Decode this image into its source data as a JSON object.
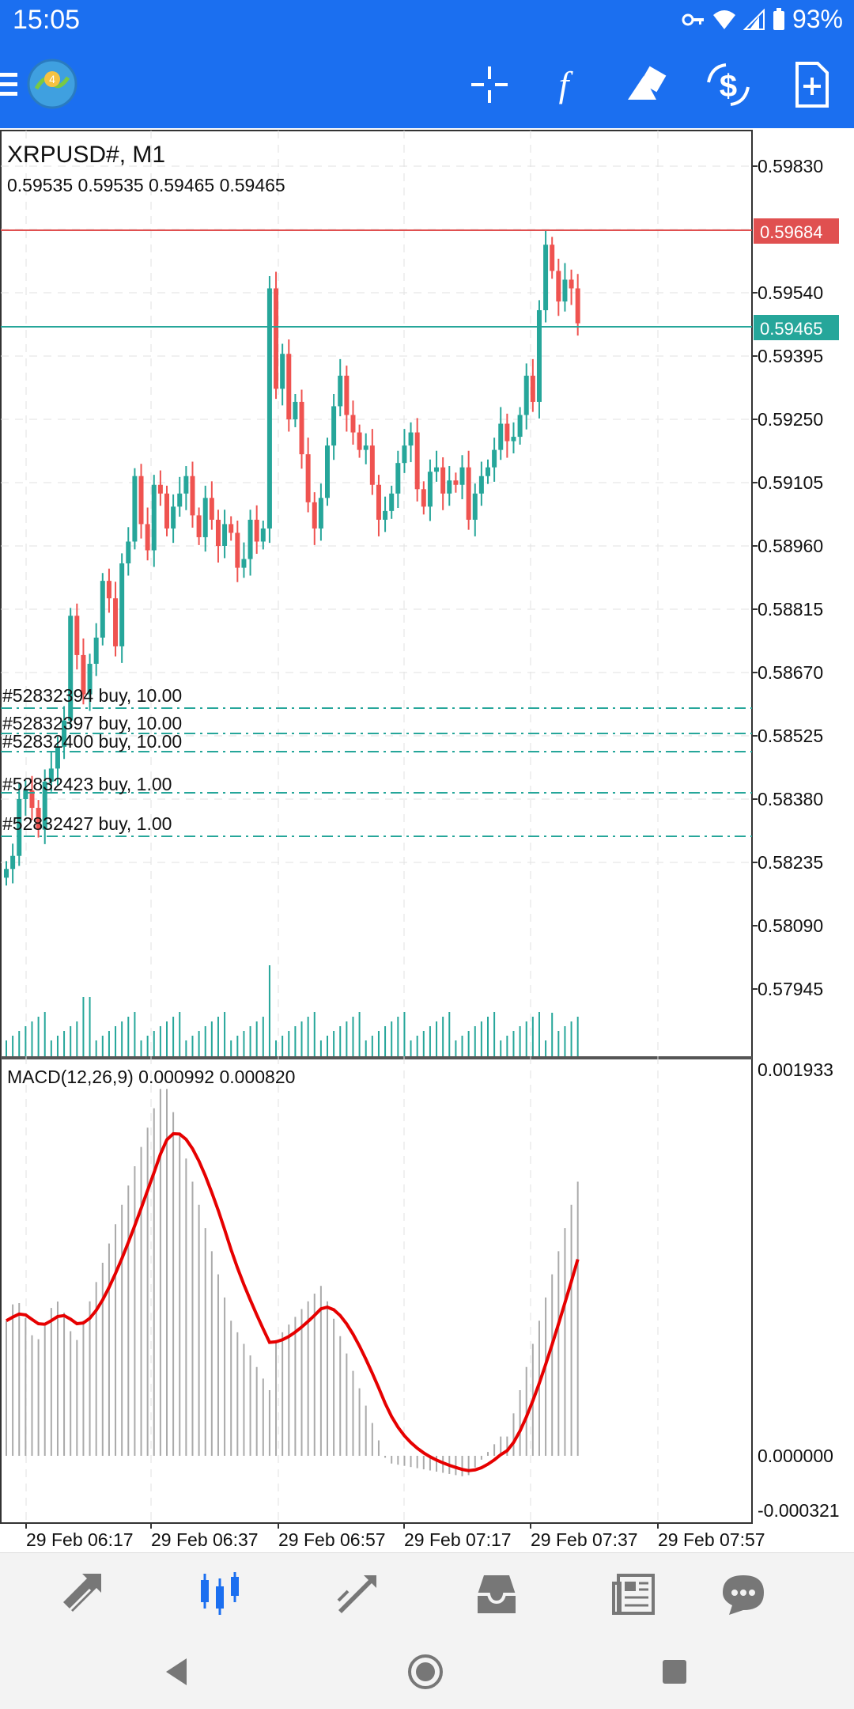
{
  "status_bar": {
    "time": "15:05",
    "battery": "93%"
  },
  "chart": {
    "symbol_timeframe": "XRPUSD#, M1",
    "ohlc": "0.59535 0.59535 0.59465 0.59465",
    "price_ticks": [
      "0.59830",
      "0.59540",
      "0.59395",
      "0.59250",
      "0.59105",
      "0.58960",
      "0.58815",
      "0.58670",
      "0.58525",
      "0.58380",
      "0.58235",
      "0.58090",
      "0.57945"
    ],
    "ask_price": "0.59684",
    "bid_price": "0.59465",
    "orders": [
      "#52832394 buy, 10.00",
      "#52832397 buy, 10.00",
      "#52832400 buy, 10.00",
      "#52832423 buy, 1.00",
      "#52832427 buy, 1.00"
    ],
    "macd_label": "MACD(12,26,9) 0.000992 0.000820",
    "macd_ticks": [
      "0.001933",
      "0.000000",
      "-0.000321"
    ],
    "time_labels": [
      "29 Feb 06:17",
      "29 Feb 06:37",
      "29 Feb 06:57",
      "29 Feb 07:17",
      "29 Feb 07:37",
      "29 Feb 07:57"
    ]
  },
  "colors": {
    "bull": "#26a69a",
    "bear": "#ef5350",
    "accent": "#1b6ff0",
    "signal": "#e60000"
  },
  "chart_data": {
    "type": "candlestick",
    "symbol": "XRPUSD#",
    "timeframe": "M1",
    "y_range": [
      0.5786,
      0.599
    ],
    "close_approx": [
      0.5822,
      0.5825,
      0.5838,
      0.584,
      0.5836,
      0.5831,
      0.5842,
      0.5845,
      0.585,
      0.5856,
      0.588,
      0.5871,
      0.5862,
      0.5869,
      0.5875,
      0.5888,
      0.5884,
      0.5873,
      0.5892,
      0.5897,
      0.5912,
      0.5901,
      0.5895,
      0.591,
      0.5908,
      0.59,
      0.5905,
      0.5908,
      0.5912,
      0.5903,
      0.5898,
      0.5907,
      0.5902,
      0.5896,
      0.5901,
      0.5899,
      0.5891,
      0.5893,
      0.5902,
      0.5897,
      0.59,
      0.5955,
      0.5932,
      0.594,
      0.5925,
      0.5929,
      0.5917,
      0.5906,
      0.59,
      0.5907,
      0.5919,
      0.5928,
      0.5935,
      0.5926,
      0.5922,
      0.5918,
      0.5919,
      0.591,
      0.5902,
      0.5904,
      0.5908,
      0.5915,
      0.5919,
      0.5922,
      0.5909,
      0.5905,
      0.5913,
      0.5914,
      0.5908,
      0.5911,
      0.591,
      0.5914,
      0.5902,
      0.5908,
      0.5912,
      0.5914,
      0.5918,
      0.5924,
      0.592,
      0.5921,
      0.5926,
      0.5935,
      0.5929,
      0.595,
      0.5965,
      0.5959,
      0.5952,
      0.5957,
      0.5955,
      0.5947
    ]
  }
}
